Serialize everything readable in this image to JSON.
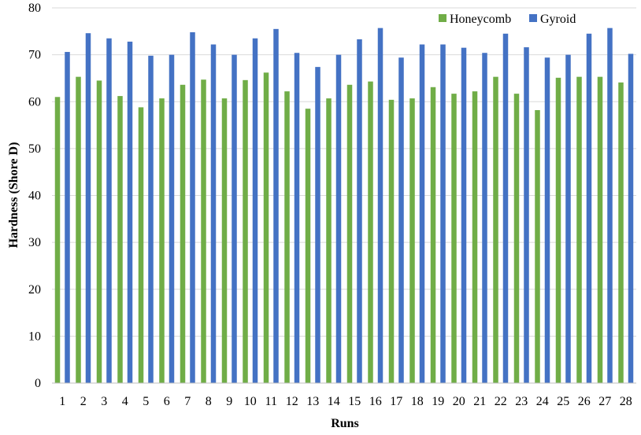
{
  "colors": {
    "honeycomb": "#70ad47",
    "gyroid": "#4472c4",
    "grid": "#d9d9d9",
    "axis": "#bfbfbf"
  },
  "chart_data": {
    "type": "bar",
    "title": "",
    "xlabel": "Runs",
    "ylabel": "Hardness (Shore D)",
    "ylim": [
      0,
      80
    ],
    "yticks": [
      0,
      10,
      20,
      30,
      40,
      50,
      60,
      70,
      80
    ],
    "grid": true,
    "legend_position": "top-right",
    "categories": [
      "1",
      "2",
      "3",
      "4",
      "5",
      "6",
      "7",
      "8",
      "9",
      "10",
      "11",
      "12",
      "13",
      "14",
      "15",
      "16",
      "17",
      "18",
      "19",
      "20",
      "21",
      "22",
      "23",
      "24",
      "25",
      "26",
      "27",
      "28"
    ],
    "series": [
      {
        "name": "Honeycomb",
        "values": [
          61.0,
          65.3,
          64.5,
          61.2,
          58.8,
          60.7,
          63.6,
          64.7,
          60.7,
          64.6,
          66.2,
          62.2,
          58.5,
          60.7,
          63.6,
          64.3,
          60.4,
          60.7,
          63.1,
          61.7,
          62.2,
          65.3,
          61.7,
          58.2,
          65.1,
          65.3,
          65.3,
          64.1
        ]
      },
      {
        "name": "Gyroid",
        "values": [
          70.6,
          74.6,
          73.5,
          72.8,
          69.8,
          70.0,
          74.8,
          72.2,
          70.0,
          73.5,
          75.5,
          70.4,
          67.4,
          70.0,
          73.3,
          75.7,
          69.4,
          72.2,
          72.2,
          71.5,
          70.4,
          74.5,
          71.6,
          69.4,
          70.0,
          74.5,
          75.7,
          70.2
        ]
      }
    ]
  }
}
